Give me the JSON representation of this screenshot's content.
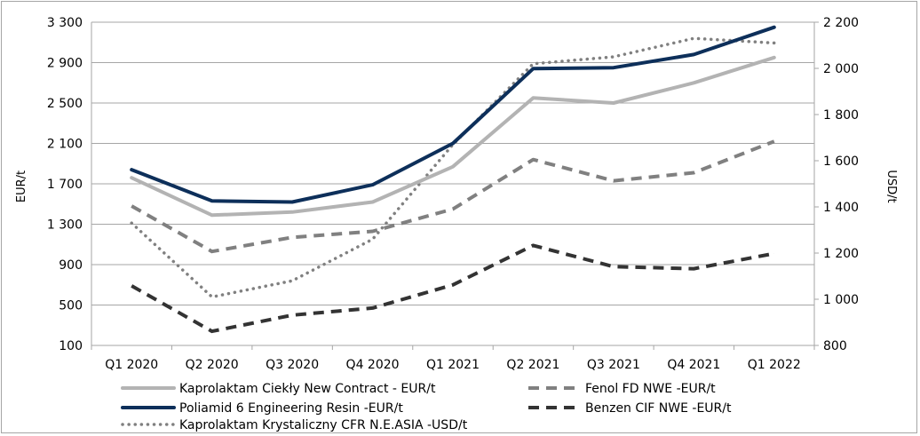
{
  "chart_data": {
    "type": "line",
    "categories": [
      "Q1 2020",
      "Q2 2020",
      "Q3 2020",
      "Q4 2020",
      "Q1 2021",
      "Q2 2021",
      "Q3 2021",
      "Q4 2021",
      "Q1 2022"
    ],
    "y_left": {
      "label": "EUR/t",
      "ticks": [
        "100",
        "500",
        "900",
        "1 300",
        "1 700",
        "2 100",
        "2 500",
        "2 900",
        "3 300"
      ],
      "range": [
        100,
        3300
      ]
    },
    "y_right": {
      "label": "USD/t",
      "ticks": [
        "800",
        "1 000",
        "1 200",
        "1 400",
        "1 600",
        "1 800",
        "2 000",
        "2 200"
      ],
      "range": [
        800,
        2200
      ]
    },
    "grid": true,
    "legend_position": "bottom",
    "series": [
      {
        "name": "Kaprolaktam Ciekły New Contract - EUR/t",
        "axis": "left",
        "color": "#b3b3b3",
        "style": "solid",
        "values": [
          1760,
          1390,
          1420,
          1520,
          1870,
          2550,
          2500,
          2700,
          2950
        ]
      },
      {
        "name": "Fenol FD NWE -EUR/t",
        "axis": "left",
        "color": "#808080",
        "style": "dashed",
        "values": [
          1480,
          1030,
          1170,
          1230,
          1450,
          1940,
          1730,
          1810,
          2120
        ]
      },
      {
        "name": "Poliamid 6 Engineering Resin  -EUR/t",
        "axis": "left",
        "color": "#0d2f5a",
        "style": "solid",
        "values": [
          1840,
          1530,
          1520,
          1690,
          2100,
          2840,
          2850,
          2980,
          3250
        ]
      },
      {
        "name": "Benzen CIF NWE -EUR/t",
        "axis": "left",
        "color": "#333333",
        "style": "dashed",
        "values": [
          690,
          240,
          400,
          470,
          700,
          1090,
          880,
          860,
          1010
        ]
      },
      {
        "name": "Kaprolaktam Krystaliczny CFR N.E.ASIA -USD/t",
        "axis": "right",
        "color": "#808080",
        "style": "dotted",
        "values": [
          1330,
          1010,
          1080,
          1260,
          1670,
          2020,
          2050,
          2130,
          2110
        ]
      }
    ]
  }
}
